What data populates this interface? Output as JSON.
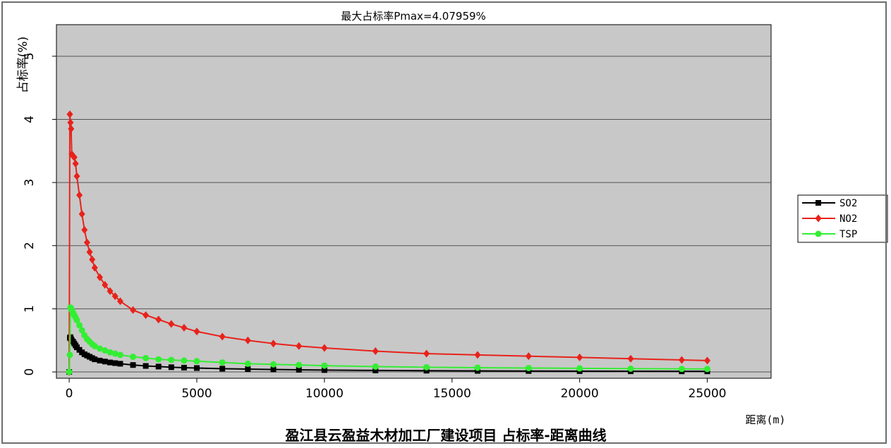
{
  "chart_data": {
    "type": "line",
    "title": "最大占标率Pmax=4.07959%",
    "subtitle": "盈江县云盈益木材加工厂建设项目 占标率-距离曲线",
    "xlabel": "距离(m)",
    "ylabel": "占标率(%)",
    "xlim": [
      -500,
      27500
    ],
    "ylim": [
      -0.1,
      5.5
    ],
    "xticks": [
      0,
      5000,
      10000,
      15000,
      20000,
      25000
    ],
    "yticks": [
      0,
      1,
      2,
      3,
      4,
      5
    ],
    "grid": "horizontal",
    "legend_position": "right",
    "plot_background": "#c8c8c8",
    "series": [
      {
        "name": "SO2",
        "color": "#000000",
        "marker": "square",
        "x": [
          0,
          25,
          50,
          75,
          100,
          150,
          200,
          250,
          300,
          400,
          500,
          600,
          700,
          800,
          900,
          1000,
          1200,
          1400,
          1600,
          1800,
          2000,
          2500,
          3000,
          3500,
          4000,
          4500,
          5000,
          6000,
          7000,
          8000,
          9000,
          10000,
          12000,
          14000,
          16000,
          18000,
          20000,
          22000,
          24000,
          25000
        ],
        "y": [
          0.0,
          0.54,
          0.55,
          0.52,
          0.5,
          0.48,
          0.45,
          0.42,
          0.39,
          0.35,
          0.31,
          0.28,
          0.26,
          0.24,
          0.22,
          0.2,
          0.18,
          0.165,
          0.15,
          0.14,
          0.13,
          0.11,
          0.095,
          0.085,
          0.075,
          0.068,
          0.062,
          0.052,
          0.045,
          0.039,
          0.034,
          0.03,
          0.024,
          0.02,
          0.017,
          0.015,
          0.013,
          0.011,
          0.01,
          0.01
        ]
      },
      {
        "name": "NO2",
        "color": "#e8221b",
        "marker": "diamond",
        "x": [
          0,
          25,
          50,
          75,
          100,
          150,
          200,
          250,
          300,
          400,
          500,
          600,
          700,
          800,
          900,
          1000,
          1200,
          1400,
          1600,
          1800,
          2000,
          2500,
          3000,
          3500,
          4000,
          4500,
          5000,
          6000,
          7000,
          8000,
          9000,
          10000,
          12000,
          14000,
          16000,
          18000,
          20000,
          22000,
          24000,
          25000
        ],
        "y": [
          0.0,
          4.08,
          3.95,
          3.85,
          3.45,
          3.42,
          3.4,
          3.3,
          3.1,
          2.8,
          2.5,
          2.25,
          2.05,
          1.9,
          1.78,
          1.65,
          1.5,
          1.38,
          1.28,
          1.2,
          1.12,
          0.98,
          0.9,
          0.83,
          0.76,
          0.7,
          0.64,
          0.56,
          0.5,
          0.45,
          0.41,
          0.38,
          0.33,
          0.29,
          0.27,
          0.25,
          0.23,
          0.21,
          0.19,
          0.18
        ]
      },
      {
        "name": "TSP",
        "color": "#33ee33",
        "marker": "circle",
        "x": [
          0,
          25,
          50,
          75,
          100,
          150,
          200,
          250,
          300,
          400,
          500,
          600,
          700,
          800,
          900,
          1000,
          1200,
          1400,
          1600,
          1800,
          2000,
          2500,
          3000,
          3500,
          4000,
          4500,
          5000,
          6000,
          7000,
          8000,
          9000,
          10000,
          12000,
          14000,
          16000,
          18000,
          20000,
          22000,
          24000,
          25000
        ],
        "y": [
          0.0,
          0.27,
          1.02,
          1.0,
          0.98,
          0.94,
          0.9,
          0.86,
          0.82,
          0.74,
          0.66,
          0.58,
          0.52,
          0.48,
          0.44,
          0.41,
          0.37,
          0.34,
          0.31,
          0.29,
          0.27,
          0.24,
          0.22,
          0.2,
          0.19,
          0.18,
          0.17,
          0.15,
          0.13,
          0.12,
          0.11,
          0.1,
          0.085,
          0.075,
          0.068,
          0.062,
          0.057,
          0.052,
          0.048,
          0.047
        ]
      }
    ]
  }
}
